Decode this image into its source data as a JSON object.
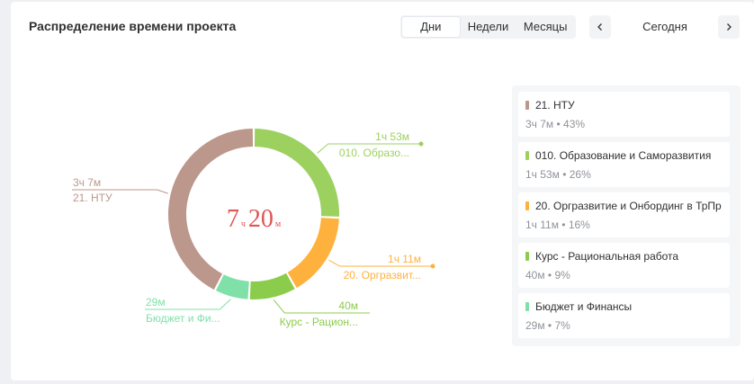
{
  "header": {
    "title": "Распределение времени проекта",
    "periods": [
      "Дни",
      "Недели",
      "Месяцы"
    ],
    "active_period": "Дни",
    "today_label": "Сегодня",
    "prev_icon": "chevron-left-icon",
    "next_icon": "chevron-right-icon"
  },
  "center": {
    "hours": "7",
    "hours_unit": "ч",
    "minutes": "20",
    "minutes_unit": "м"
  },
  "chart_data": {
    "type": "pie",
    "total_minutes": 440,
    "slices": [
      {
        "name": "010. Образование и Саморазвития",
        "short": "010. Образо...",
        "time": "1ч 53м",
        "minutes": 113,
        "percent": "26%",
        "color": "#9cd160"
      },
      {
        "name": "20. Оргразвитие и Онбординг в ТрПр",
        "short": "20. Оргразвит...",
        "time": "1ч 11м",
        "minutes": 71,
        "percent": "16%",
        "color": "#ffb13d"
      },
      {
        "name": "Курс - Рациональная работа",
        "short": "Курс - Рацион...",
        "time": "40м",
        "minutes": 40,
        "percent": "9%",
        "color": "#8ccc4c"
      },
      {
        "name": "Бюджет и Финансы",
        "short": "Бюджет и Фи...",
        "time": "29м",
        "minutes": 29,
        "percent": "7%",
        "color": "#7fe0a8"
      },
      {
        "name": "21. НТУ",
        "short": "21. НТУ",
        "time": "3ч 7м",
        "minutes": 187,
        "percent": "43%",
        "color": "#bc978b"
      }
    ]
  },
  "legend": [
    {
      "name": "21. НТУ",
      "value": "3ч 7м • 43%",
      "color": "#bc978b"
    },
    {
      "name": "010. Образование и Саморазвития",
      "value": "1ч 53м • 26%",
      "color": "#9cd160"
    },
    {
      "name": "20. Оргразвитие и Онбординг в ТрПр",
      "value": "1ч 11м • 16%",
      "color": "#ffb13d"
    },
    {
      "name": "Курс - Рациональная работа",
      "value": "40м • 9%",
      "color": "#8ccc4c"
    },
    {
      "name": "Бюджет и Финансы",
      "value": "29м • 7%",
      "color": "#7fe0a8"
    }
  ]
}
